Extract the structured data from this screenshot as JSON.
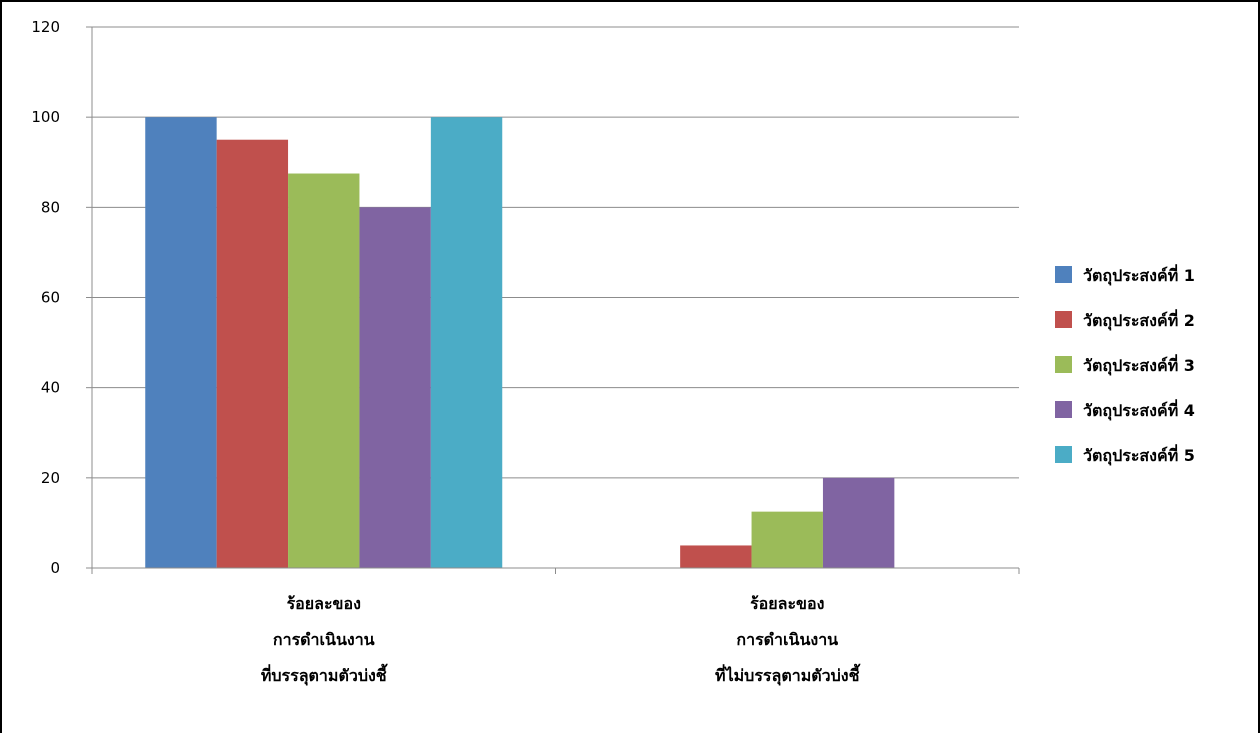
{
  "chart_data": {
    "type": "bar",
    "categories": [
      [
        "ร้อยละของ",
        "การดำเนินงาน",
        "ที่บรรลุตามตัวบ่งชี้"
      ],
      [
        "ร้อยละของ",
        "การดำเนินงาน",
        "ที่ไม่บรรลุตามตัวบ่งชี้"
      ]
    ],
    "series": [
      {
        "name": "วัตถุประสงค์ที่ 1",
        "color": "#4f81bd",
        "values": [
          100,
          0
        ]
      },
      {
        "name": "วัตถุประสงค์ที่ 2",
        "color": "#c0504d",
        "values": [
          95,
          5
        ]
      },
      {
        "name": "วัตถุประสงค์ที่ 3",
        "color": "#9bbb59",
        "values": [
          87.5,
          12.5
        ]
      },
      {
        "name": "วัตถุประสงค์ที่ 4",
        "color": "#8064a2",
        "values": [
          80,
          20
        ]
      },
      {
        "name": "วัตถุประสงค์ที่ 5",
        "color": "#4bacc6",
        "values": [
          100,
          0
        ]
      }
    ],
    "ylim": [
      0,
      120
    ],
    "yticks": [
      "0",
      "20",
      "40",
      "60",
      "80",
      "100",
      "120"
    ],
    "grid": true,
    "legend": "right"
  }
}
